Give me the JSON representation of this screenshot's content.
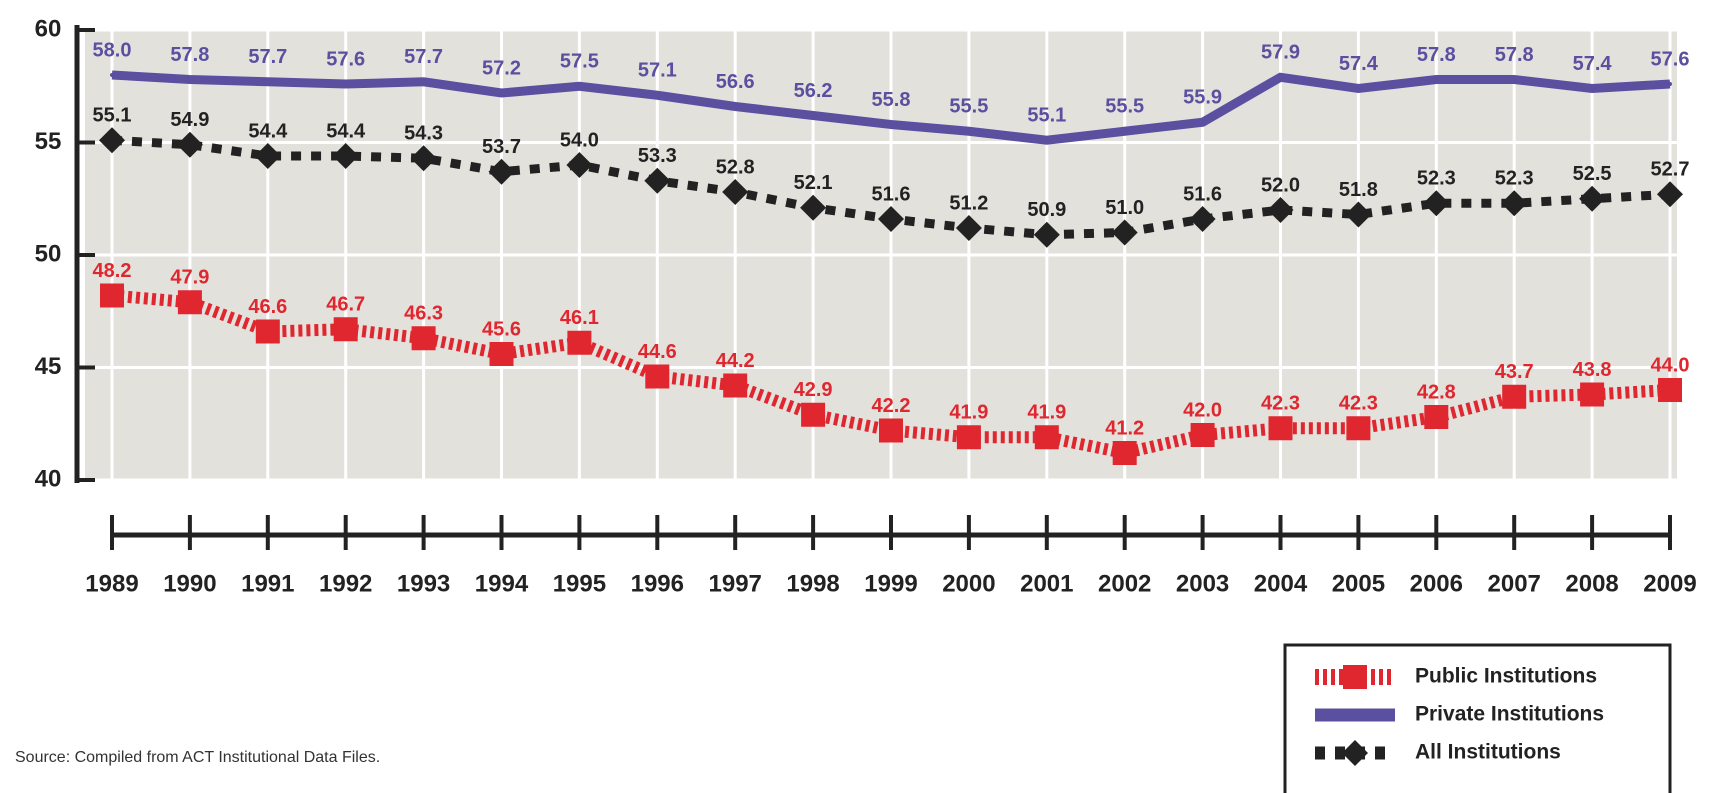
{
  "chart_data": {
    "type": "line",
    "categories": [
      "1989",
      "1990",
      "1991",
      "1992",
      "1993",
      "1994",
      "1995",
      "1996",
      "1997",
      "1998",
      "1999",
      "2000",
      "2001",
      "2002",
      "2003",
      "2004",
      "2005",
      "2006",
      "2007",
      "2008",
      "2009"
    ],
    "series": [
      {
        "name": "Public Institutions",
        "color": "#e0262e",
        "values": [
          48.2,
          47.9,
          46.6,
          46.7,
          46.3,
          45.6,
          46.1,
          44.6,
          44.2,
          42.9,
          42.2,
          41.9,
          41.9,
          41.2,
          42.0,
          42.3,
          42.3,
          42.8,
          43.7,
          43.8,
          44.0
        ],
        "value_labels": [
          "48.2",
          "47.9",
          "46.6",
          "46.7",
          "46.3",
          "45.6",
          "46.1",
          "44.6",
          "44.2",
          "42.9",
          "42.2",
          "41.9",
          "41.9",
          "41.2",
          "42.0",
          "42.3",
          "42.3",
          "42.8",
          "43.7",
          "43.8",
          "44.0"
        ]
      },
      {
        "name": "Private Institutions",
        "color": "#5b4fa0",
        "values": [
          58.0,
          57.8,
          57.7,
          57.6,
          57.7,
          57.2,
          57.5,
          57.1,
          56.6,
          56.2,
          55.8,
          55.5,
          55.1,
          55.5,
          55.9,
          57.9,
          57.4,
          57.8,
          57.8,
          57.4,
          57.6
        ],
        "value_labels": [
          "58.0",
          "57.8",
          "57.7",
          "57.6",
          "57.7",
          "57.2",
          "57.5",
          "57.1",
          "56.6",
          "56.2",
          "55.8",
          "55.5",
          "55.1",
          "55.5",
          "55.9",
          "57.9",
          "57.4",
          "57.8",
          "57.8",
          "57.4",
          "57.6"
        ]
      },
      {
        "name": "All Institutions",
        "color": "#222222",
        "values": [
          55.1,
          54.9,
          54.4,
          54.4,
          54.3,
          53.7,
          54.0,
          53.3,
          52.8,
          52.1,
          51.6,
          51.2,
          50.9,
          51.0,
          51.6,
          52.0,
          51.8,
          52.3,
          52.3,
          52.5,
          52.7
        ],
        "value_labels": [
          "55.1",
          "54.9",
          "54.4",
          "54.4",
          "54.3",
          "53.7",
          "54.0",
          "53.3",
          "52.8",
          "52.1",
          "51.6",
          "51.2",
          "50.9",
          "51.0",
          "51.6",
          "52.0",
          "51.8",
          "52.3",
          "52.3",
          "52.5",
          "52.7"
        ]
      }
    ],
    "ylim": [
      40,
      60
    ],
    "yticks": [
      40,
      45,
      50,
      55,
      60
    ],
    "grid": true,
    "legend": "bottom-right",
    "source": "Source: Compiled from ACT Institutional Data Files."
  }
}
